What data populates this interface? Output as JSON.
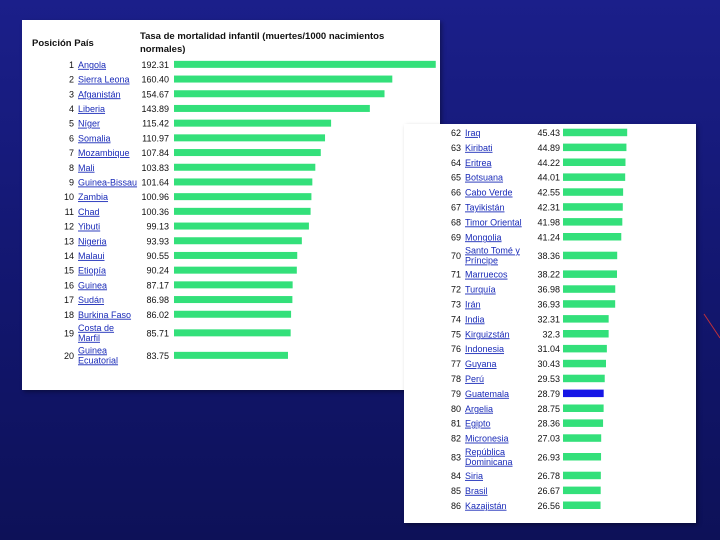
{
  "left_table": {
    "col_position": "Posición País",
    "col_rate": "Tasa de mortalidad infantil (muertes/1000 nacimientos normales)"
  },
  "chart_data": [
    {
      "type": "bar",
      "orientation": "horizontal",
      "title": "Tasa de mortalidad infantil (muertes/1000 nacimientos normales)",
      "bar_color": "#33e07a",
      "xlim": [
        0,
        192.5
      ],
      "rows": [
        {
          "rank": "1",
          "country": "Angola",
          "value": "192.31"
        },
        {
          "rank": "2",
          "country": "Sierra Leona",
          "value": "160.40"
        },
        {
          "rank": "3",
          "country": "Afganistán",
          "value": "154.67"
        },
        {
          "rank": "4",
          "country": "Liberia",
          "value": "143.89"
        },
        {
          "rank": "5",
          "country": "Níger",
          "value": "115.42"
        },
        {
          "rank": "6",
          "country": "Somalia",
          "value": "110.97"
        },
        {
          "rank": "7",
          "country": "Mozambique",
          "value": "107.84"
        },
        {
          "rank": "8",
          "country": "Mali",
          "value": "103.83"
        },
        {
          "rank": "9",
          "country": "Guinea-Bissau",
          "value": "101.64"
        },
        {
          "rank": "10",
          "country": "Zambia",
          "value": "100.96"
        },
        {
          "rank": "11",
          "country": "Chad",
          "value": "100.36"
        },
        {
          "rank": "12",
          "country": "Yibuti",
          "value": "99.13"
        },
        {
          "rank": "13",
          "country": "Nigeria",
          "value": "93.93"
        },
        {
          "rank": "14",
          "country": "Malaui",
          "value": "90.55"
        },
        {
          "rank": "15",
          "country": "Etiopía",
          "value": "90.24"
        },
        {
          "rank": "16",
          "country": "Guinea",
          "value": "87.17"
        },
        {
          "rank": "17",
          "country": "Sudán",
          "value": "86.98"
        },
        {
          "rank": "18",
          "country": "Burkina Faso",
          "value": "86.02"
        },
        {
          "rank": "19",
          "country": "Costa de Marfil",
          "value": "85.71"
        },
        {
          "rank": "20",
          "country": "Guinea Ecuatorial",
          "value": "83.75"
        }
      ]
    },
    {
      "type": "bar",
      "orientation": "horizontal",
      "bar_color": "#33e07a",
      "highlight_color": "#1616e6",
      "xlim": [
        0,
        46
      ],
      "rows": [
        {
          "rank": "62",
          "country": "Iraq",
          "value": "45.43"
        },
        {
          "rank": "63",
          "country": "Kiribati",
          "value": "44.89"
        },
        {
          "rank": "64",
          "country": "Eritrea",
          "value": "44.22"
        },
        {
          "rank": "65",
          "country": "Botsuana",
          "value": "44.01"
        },
        {
          "rank": "66",
          "country": "Cabo Verde",
          "value": "42.55"
        },
        {
          "rank": "67",
          "country": "Tayikistán",
          "value": "42.31"
        },
        {
          "rank": "68",
          "country": "Timor Oriental",
          "value": "41.98"
        },
        {
          "rank": "69",
          "country": "Mongolia",
          "value": "41.24"
        },
        {
          "rank": "70",
          "country": "Santo Tomé y Príncipe",
          "value": "38.36"
        },
        {
          "rank": "71",
          "country": "Marruecos",
          "value": "38.22"
        },
        {
          "rank": "72",
          "country": "Turquía",
          "value": "36.98"
        },
        {
          "rank": "73",
          "country": "Irán",
          "value": "36.93"
        },
        {
          "rank": "74",
          "country": "India",
          "value": "32.31"
        },
        {
          "rank": "75",
          "country": "Kirguizstán",
          "value": "32.3"
        },
        {
          "rank": "76",
          "country": "Indonesia",
          "value": "31.04"
        },
        {
          "rank": "77",
          "country": "Guyana",
          "value": "30.43"
        },
        {
          "rank": "78",
          "country": "Perú",
          "value": "29.53"
        },
        {
          "rank": "79",
          "country": "Guatemala",
          "value": "28.79",
          "highlight": true
        },
        {
          "rank": "80",
          "country": "Argelia",
          "value": "28.75"
        },
        {
          "rank": "81",
          "country": "Egipto",
          "value": "28.36"
        },
        {
          "rank": "82",
          "country": "Micronesia",
          "value": "27.03"
        },
        {
          "rank": "83",
          "country": "República Dominicana",
          "value": "26.93"
        },
        {
          "rank": "84",
          "country": "Siria",
          "value": "26.78"
        },
        {
          "rank": "85",
          "country": "Brasil",
          "value": "26.67"
        },
        {
          "rank": "86",
          "country": "Kazajistán",
          "value": "26.56"
        }
      ]
    }
  ]
}
